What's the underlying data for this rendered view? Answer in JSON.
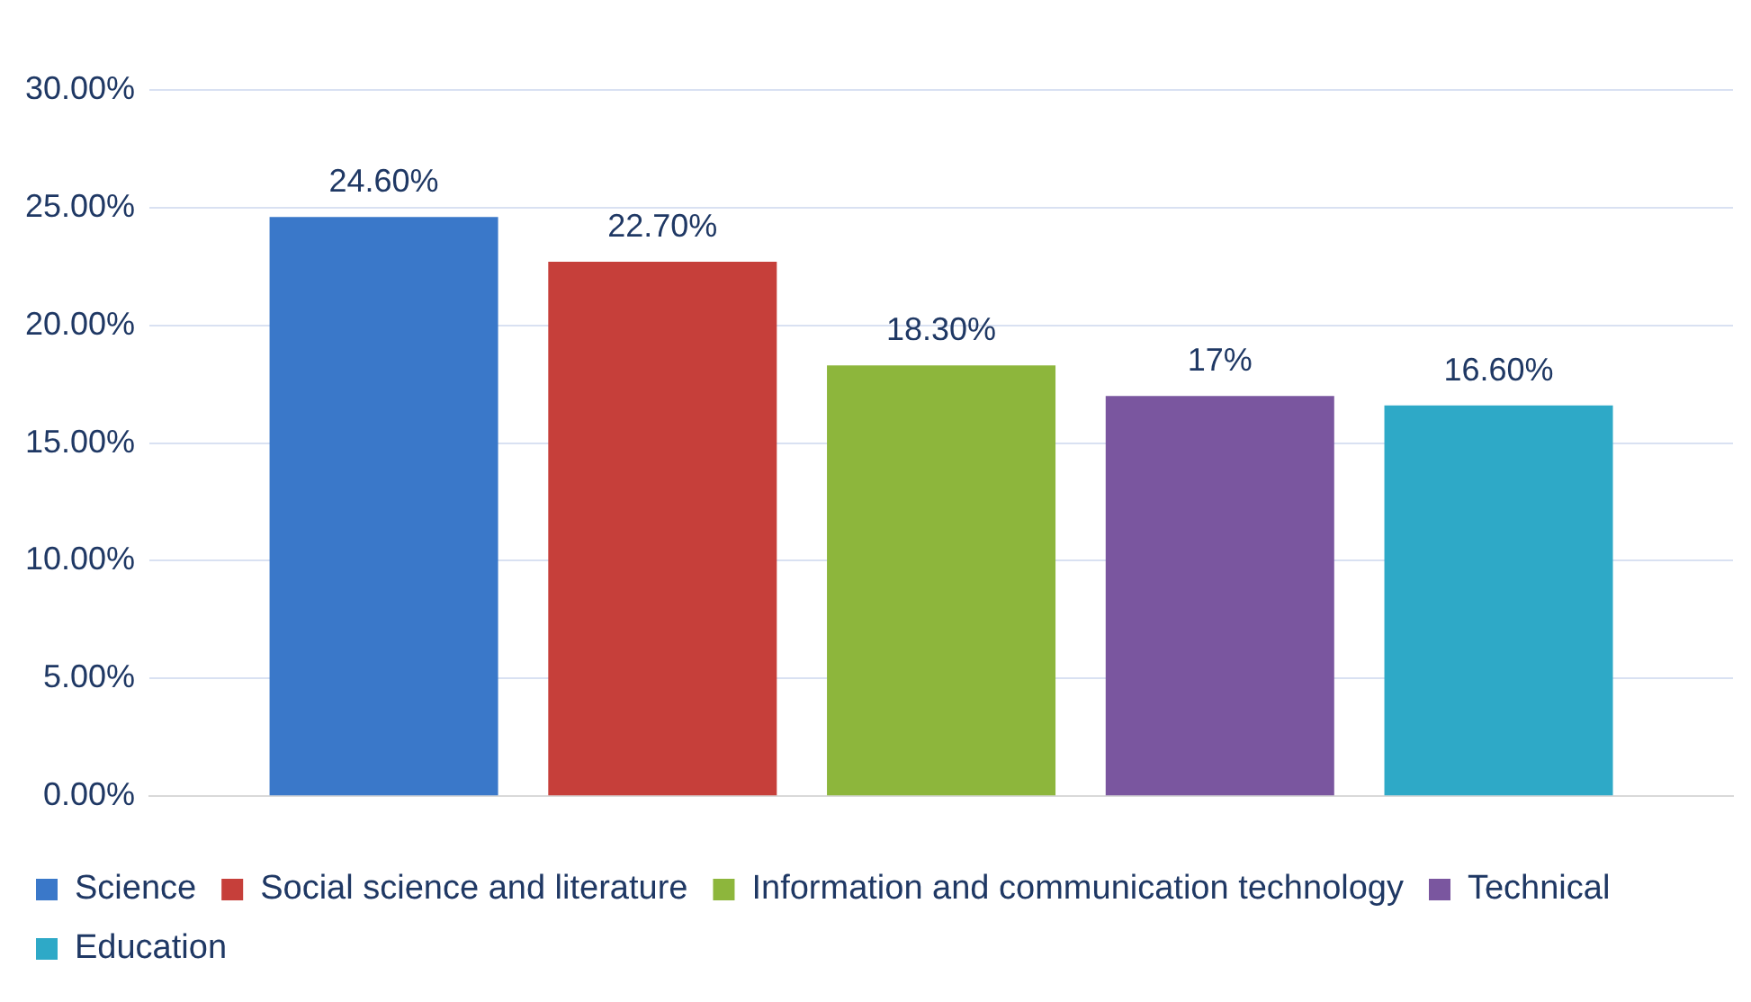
{
  "chart_data": {
    "type": "bar",
    "categories": [
      null
    ],
    "series": [
      {
        "name": "Science",
        "color": "#3a78c9",
        "values": [
          24.6
        ],
        "value_labels": [
          "24.60%"
        ]
      },
      {
        "name": "Social science and literature",
        "color": "#c63f3a",
        "values": [
          22.7
        ],
        "value_labels": [
          "22.70%"
        ]
      },
      {
        "name": "Information and communication technology",
        "color": "#8db63c",
        "values": [
          18.3
        ],
        "value_labels": [
          "18.30%"
        ]
      },
      {
        "name": "Technical",
        "color": "#7a569f",
        "values": [
          17
        ],
        "value_labels": [
          "17%"
        ]
      },
      {
        "name": "Education",
        "color": "#2ea9c7",
        "values": [
          16.6
        ],
        "value_labels": [
          "16.60%"
        ]
      }
    ],
    "ylim": [
      0,
      30
    ],
    "yticks": [
      {
        "value": 0,
        "label": "0.00%"
      },
      {
        "value": 5,
        "label": "5.00%"
      },
      {
        "value": 10,
        "label": "10.00%"
      },
      {
        "value": 15,
        "label": "15.00%"
      },
      {
        "value": 20,
        "label": "20.00%"
      },
      {
        "value": 25,
        "label": "25.00%"
      },
      {
        "value": 30,
        "label": "30.00%"
      }
    ],
    "grid": "y",
    "legend": "bottom"
  }
}
